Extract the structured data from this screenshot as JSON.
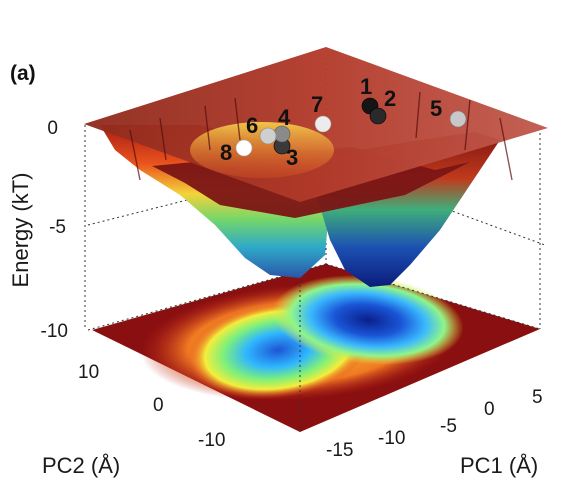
{
  "chart_data": {
    "type": "surface",
    "panel_label": "(a)",
    "zlabel": "Energy (kT)",
    "xlabel": "PC1 (Å)",
    "ylabel": "PC2 (Å)",
    "z_ticks": [
      "0",
      "-5",
      "-10"
    ],
    "x_ticks": [
      "-15",
      "-10",
      "-5",
      "0",
      "5"
    ],
    "y_ticks": [
      "10",
      "0",
      "-10"
    ],
    "zlim": [
      -10,
      0
    ],
    "minima": [
      {
        "name": "blue basin",
        "energy": -7.8
      },
      {
        "name": "green basin",
        "energy": -7.5
      }
    ],
    "projection": "2D energy contour on the floor plane",
    "markers": [
      {
        "id": "1",
        "color": "#151515"
      },
      {
        "id": "2",
        "color": "#2a2a2a"
      },
      {
        "id": "3",
        "color": "#3a3a3a"
      },
      {
        "id": "4",
        "color": "#8a8a8a"
      },
      {
        "id": "5",
        "color": "#c8c8c8"
      },
      {
        "id": "6",
        "color": "#cfcfcf"
      },
      {
        "id": "7",
        "color": "#ececec"
      },
      {
        "id": "8",
        "color": "#ffffff"
      }
    ]
  }
}
